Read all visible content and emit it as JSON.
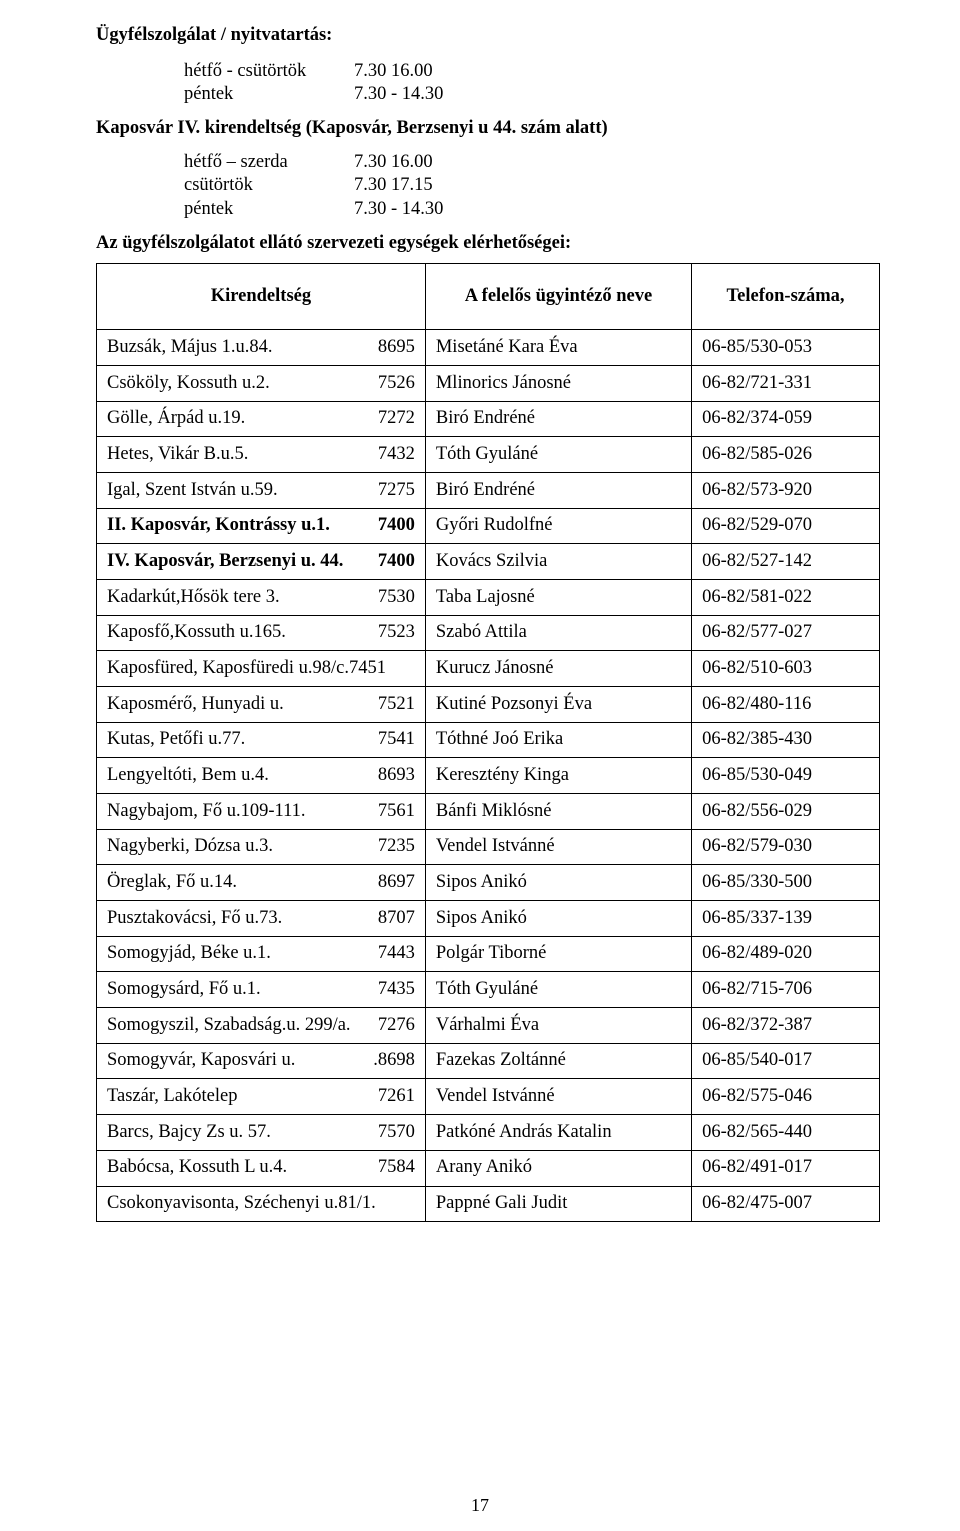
{
  "heading": "Ügyfélszolgálat / nyitvatartás:",
  "hours1": [
    {
      "label": "hétfő - csütörtök",
      "value": "7.30  16.00"
    },
    {
      "label": "péntek",
      "value": "7.30 - 14.30"
    }
  ],
  "subheading": "Kaposvár IV. kirendeltség (Kaposvár, Berzsenyi u 44. szám alatt)",
  "hours2": [
    {
      "label": "hétfő – szerda",
      "value": "7.30  16.00"
    },
    {
      "label": "csütörtök",
      "value": "7.30  17.15"
    },
    {
      "label": "péntek",
      "value": "7.30 - 14.30"
    }
  ],
  "intro": "Az ügyfélszolgálatot ellátó szervezeti egységek elérhetőségei:",
  "table": {
    "headers": {
      "district": "Kirendeltség",
      "name": "A felelős ügyintéző neve",
      "phone": "Telefon-száma,"
    },
    "rows": [
      {
        "district": "Buzsák, Május 1.u.84.",
        "code": "8695",
        "name": "Misetáné Kara Éva",
        "phone": "06-85/530-053"
      },
      {
        "district": "Csököly, Kossuth u.2.",
        "code": "7526",
        "name": "Mlinorics Jánosné",
        "phone": "06-82/721-331"
      },
      {
        "district": "Gölle, Árpád u.19.",
        "code": "7272",
        "name": "Biró Endréné",
        "phone": "06-82/374-059"
      },
      {
        "district": "Hetes, Vikár B.u.5.",
        "code": "7432",
        "name": "Tóth Gyuláné",
        "phone": "06-82/585-026"
      },
      {
        "district": "Igal, Szent István u.59.",
        "code": "7275",
        "name": "Biró Endréné",
        "phone": "06-82/573-920"
      },
      {
        "district": "II. Kaposvár, Kontrássy u.1.",
        "code": "7400",
        "bold_district": true,
        "name": "Győri Rudolfné",
        "phone": "06-82/529-070"
      },
      {
        "district": "IV. Kaposvár, Berzsenyi u. 44.",
        "code": "7400",
        "bold_district": true,
        "name": "Kovács Szilvia",
        "phone": "06-82/527-142"
      },
      {
        "district": "Kadarkút,Hősök tere 3.",
        "code": "7530",
        "name": "Taba Lajosné",
        "phone": "06-82/581-022"
      },
      {
        "district": "Kaposfő,Kossuth u.165.",
        "code": "7523",
        "name": "Szabó Attila",
        "phone": "06-82/577-027"
      },
      {
        "district": "Kaposfüred, Kaposfüredi u.98/c.",
        "code": "7451",
        "nosplit": true,
        "text": "Kaposfüred, Kaposfüredi u.98/c.7451",
        "name": "Kurucz Jánosné",
        "phone": "06-82/510-603"
      },
      {
        "district": "Kaposmérő, Hunyadi u.",
        "code": "7521",
        "name": "Kutiné Pozsonyi Éva",
        "phone": "06-82/480-116"
      },
      {
        "district": "Kutas, Petőfi u.77.",
        "code": "7541",
        "name": "Tóthné Joó Erika",
        "phone": "06-82/385-430"
      },
      {
        "district": "Lengyeltóti, Bem u.4.",
        "code": "8693",
        "name": "Keresztény Kinga",
        "phone": "06-85/530-049"
      },
      {
        "district": "Nagybajom, Fő u.109-111.",
        "code": "7561",
        "name": "Bánfi Miklósné",
        "phone": "06-82/556-029"
      },
      {
        "district": "Nagyberki, Dózsa u.3.",
        "code": "7235",
        "name": "Vendel Istvánné",
        "phone": "06-82/579-030"
      },
      {
        "district": "Öreglak, Fő u.14.",
        "code": "8697",
        "name": "Sipos Anikó",
        "phone": "06-85/330-500"
      },
      {
        "district": "Pusztakovácsi, Fő u.73.",
        "code": "8707",
        "name": "Sipos Anikó",
        "phone": "06-85/337-139"
      },
      {
        "district": "Somogyjád, Béke u.1.",
        "code": "7443",
        "name": "Polgár Tiborné",
        "phone": "06-82/489-020"
      },
      {
        "district": "Somogysárd, Fő u.1.",
        "code": "7435",
        "name": "Tóth Gyuláné",
        "phone": "06-82/715-706"
      },
      {
        "district": "Somogyszil, Szabadság.u. 299/a.",
        "code": "7276",
        "tall": true,
        "name": "Várhalmi Éva",
        "phone": "06-82/372-387"
      },
      {
        "district": "Somogyvár, Kaposvári u.",
        "code": ".8698",
        "tall": true,
        "name": "Fazekas Zoltánné",
        "phone": "06-85/540-017"
      },
      {
        "district": "Taszár, Lakótelep",
        "code": "7261",
        "name": "Vendel Istvánné",
        "phone": "06-82/575-046"
      },
      {
        "district": "Barcs, Bajcy Zs u. 57.",
        "code": "7570",
        "name": "Patkóné András Katalin",
        "phone": "06-82/565-440"
      },
      {
        "district": "Babócsa, Kossuth L u.4.",
        "code": "7584",
        "name": "Arany Anikó",
        "phone": "06-82/491-017"
      },
      {
        "district": "Csokonyavisonta, Széchenyi u.81/1.",
        "code": "",
        "nosplit": true,
        "text": "Csokonyavisonta, Széchenyi u.81/1.",
        "name": "Pappné Gali Judit",
        "phone": "06-82/475-007"
      }
    ]
  },
  "pagenum": "17"
}
